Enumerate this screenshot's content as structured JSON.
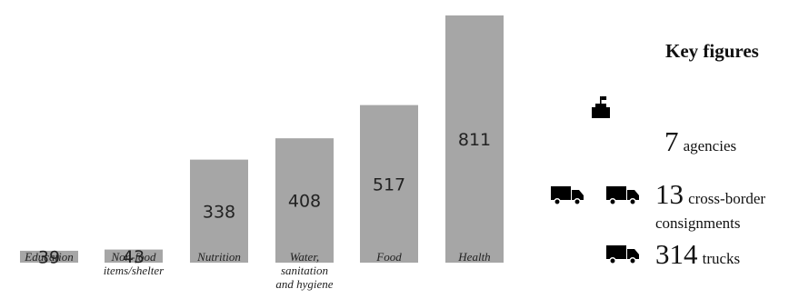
{
  "chart_data": {
    "type": "bar",
    "categories": [
      [
        "Education"
      ],
      [
        "Non-food",
        "items/shelter"
      ],
      [
        "Nutrition"
      ],
      [
        "Water,",
        "sanitation",
        "and hygiene"
      ],
      [
        "Food"
      ],
      [
        "Health"
      ]
    ],
    "values": [
      39,
      43,
      338,
      408,
      517,
      811
    ],
    "title": "",
    "xlabel": "",
    "ylabel": "",
    "ylim": [
      0,
      811
    ],
    "bar_color": "#a6a6a6",
    "grid": false,
    "legend": "none"
  },
  "key_figures": {
    "title": "Key figures",
    "agencies": {
      "number": "7",
      "label": "agencies",
      "icon": "office-building-flag-icon"
    },
    "consignments": {
      "number": "13",
      "label_line1": "cross-border",
      "label_line2": "consignments",
      "icon": "truck-icon"
    },
    "trucks": {
      "number": "314",
      "label": "trucks",
      "icon": "truck-icon"
    }
  }
}
